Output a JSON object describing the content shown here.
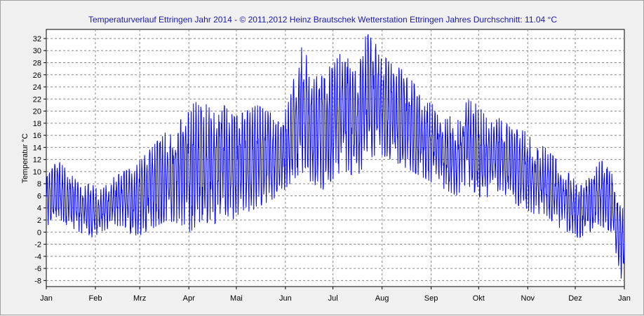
{
  "chart_data": {
    "type": "line",
    "title": "Temperaturverlauf Ettringen Jahr 2014  - © 2011,2012 Heinz Brautschek Wetterstation Ettringen Jahres Durchschnitt: 11.04 °C",
    "xlabel": "",
    "ylabel": "Temperatur °C",
    "ylim": [
      -9,
      33.5
    ],
    "grid": true,
    "x_ticks": [
      "Jan",
      "Feb",
      "Mrz",
      "Apr",
      "Mai",
      "Jun",
      "Jul",
      "Aug",
      "Sep",
      "Okt",
      "Nov",
      "Dez",
      "Jan"
    ],
    "y_ticks": [
      -8,
      -6,
      -4,
      -2,
      0,
      2,
      4,
      6,
      8,
      10,
      12,
      14,
      16,
      18,
      20,
      22,
      24,
      26,
      28,
      30,
      32
    ],
    "series": [
      {
        "color": "#0000ff",
        "x": [
          "2014-01-01",
          "2014-01-08",
          "2014-01-15",
          "2014-01-22",
          "2014-01-29",
          "2014-02-05",
          "2014-02-12",
          "2014-02-19",
          "2014-02-26",
          "2014-03-05",
          "2014-03-12",
          "2014-03-19",
          "2014-03-26",
          "2014-04-02",
          "2014-04-09",
          "2014-04-16",
          "2014-04-23",
          "2014-04-30",
          "2014-05-07",
          "2014-05-14",
          "2014-05-21",
          "2014-05-28",
          "2014-06-04",
          "2014-06-11",
          "2014-06-18",
          "2014-06-25",
          "2014-07-02",
          "2014-07-09",
          "2014-07-16",
          "2014-07-23",
          "2014-07-30",
          "2014-08-06",
          "2014-08-13",
          "2014-08-20",
          "2014-08-27",
          "2014-09-03",
          "2014-09-10",
          "2014-09-17",
          "2014-09-24",
          "2014-10-01",
          "2014-10-08",
          "2014-10-15",
          "2014-10-22",
          "2014-10-29",
          "2014-11-05",
          "2014-11-12",
          "2014-11-19",
          "2014-11-26",
          "2014-12-03",
          "2014-12-10",
          "2014-12-17",
          "2014-12-24",
          "2014-12-31"
        ],
        "y_min": [
          1,
          2,
          1,
          0,
          -1,
          0,
          1,
          1,
          -1,
          0,
          1,
          2,
          1,
          0,
          2,
          1,
          3,
          2,
          3,
          4,
          5,
          6,
          8,
          10,
          8,
          7,
          9,
          10,
          9,
          12,
          13,
          12,
          11,
          10,
          9,
          8,
          7,
          6,
          8,
          5,
          6,
          7,
          5,
          4,
          3,
          3,
          1,
          0,
          -1,
          0,
          1,
          0,
          -9
        ],
        "y_max": [
          9,
          12,
          10,
          8,
          8,
          7,
          9,
          10,
          11,
          13,
          15,
          17,
          19,
          21,
          22,
          20,
          21,
          19,
          20,
          21,
          20,
          19,
          22,
          33,
          25,
          27,
          28,
          31,
          26,
          34,
          30,
          28,
          27,
          25,
          22,
          21,
          20,
          18,
          22,
          21,
          18,
          19,
          17,
          17,
          15,
          14,
          12,
          10,
          8,
          9,
          12,
          10,
          4
        ]
      }
    ]
  }
}
